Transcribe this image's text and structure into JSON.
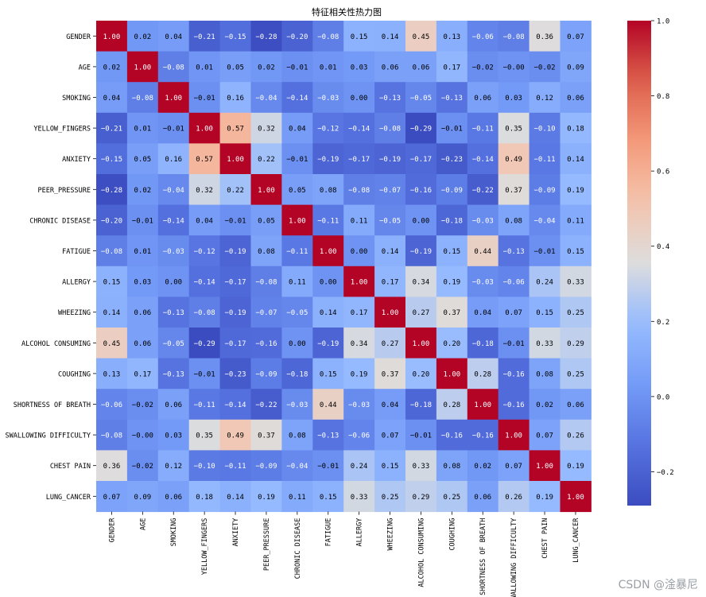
{
  "chart_data": {
    "type": "heatmap",
    "title": "特征相关性热力图",
    "labels": [
      "GENDER",
      "AGE",
      "SMOKING",
      "YELLOW_FINGERS",
      "ANXIETY",
      "PEER_PRESSURE",
      "CHRONIC DISEASE",
      "FATIGUE ",
      "ALLERGY ",
      "WHEEZING",
      "ALCOHOL CONSUMING",
      "COUGHING",
      "SHORTNESS OF BREATH",
      "SWALLOWING DIFFICULTY",
      "CHEST PAIN",
      "LUNG_CANCER"
    ],
    "matrix": [
      [
        1.0,
        0.02,
        0.04,
        -0.21,
        -0.15,
        -0.28,
        -0.2,
        -0.08,
        0.15,
        0.14,
        0.45,
        0.13,
        -0.06,
        -0.08,
        0.36,
        0.07
      ],
      [
        0.02,
        1.0,
        -0.08,
        0.01,
        0.05,
        0.02,
        -0.01,
        0.01,
        0.03,
        0.06,
        0.06,
        0.17,
        -0.02,
        -0.0,
        -0.02,
        0.09
      ],
      [
        0.04,
        -0.08,
        1.0,
        -0.01,
        0.16,
        -0.04,
        -0.14,
        -0.03,
        0.0,
        -0.13,
        -0.05,
        -0.13,
        0.06,
        0.03,
        0.12,
        0.06
      ],
      [
        -0.21,
        0.01,
        -0.01,
        1.0,
        0.57,
        0.32,
        0.04,
        -0.12,
        -0.14,
        -0.08,
        -0.29,
        -0.01,
        -0.11,
        0.35,
        -0.1,
        0.18
      ],
      [
        -0.15,
        0.05,
        0.16,
        0.57,
        1.0,
        0.22,
        -0.01,
        -0.19,
        -0.17,
        -0.19,
        -0.17,
        -0.23,
        -0.14,
        0.49,
        -0.11,
        0.14
      ],
      [
        -0.28,
        0.02,
        -0.04,
        0.32,
        0.22,
        1.0,
        0.05,
        0.08,
        -0.08,
        -0.07,
        -0.16,
        -0.09,
        -0.22,
        0.37,
        -0.09,
        0.19
      ],
      [
        -0.2,
        -0.01,
        -0.14,
        0.04,
        -0.01,
        0.05,
        1.0,
        -0.11,
        0.11,
        -0.05,
        0.0,
        -0.18,
        -0.03,
        0.08,
        -0.04,
        0.11
      ],
      [
        -0.08,
        0.01,
        -0.03,
        -0.12,
        -0.19,
        0.08,
        -0.11,
        1.0,
        0.0,
        0.14,
        -0.19,
        0.15,
        0.44,
        -0.13,
        -0.01,
        0.15
      ],
      [
        0.15,
        0.03,
        0.0,
        -0.14,
        -0.17,
        -0.08,
        0.11,
        0.0,
        1.0,
        0.17,
        0.34,
        0.19,
        -0.03,
        -0.06,
        0.24,
        0.33
      ],
      [
        0.14,
        0.06,
        -0.13,
        -0.08,
        -0.19,
        -0.07,
        -0.05,
        0.14,
        0.17,
        1.0,
        0.27,
        0.37,
        0.04,
        0.07,
        0.15,
        0.25
      ],
      [
        0.45,
        0.06,
        -0.05,
        -0.29,
        -0.17,
        -0.16,
        0.0,
        -0.19,
        0.34,
        0.27,
        1.0,
        0.2,
        -0.18,
        -0.01,
        0.33,
        0.29
      ],
      [
        0.13,
        0.17,
        -0.13,
        -0.01,
        -0.23,
        -0.09,
        -0.18,
        0.15,
        0.19,
        0.37,
        0.2,
        1.0,
        0.28,
        -0.16,
        0.08,
        0.25
      ],
      [
        -0.06,
        -0.02,
        0.06,
        -0.11,
        -0.14,
        -0.22,
        -0.03,
        0.44,
        -0.03,
        0.04,
        -0.18,
        0.28,
        1.0,
        -0.16,
        0.02,
        0.06
      ],
      [
        -0.08,
        -0.0,
        0.03,
        0.35,
        0.49,
        0.37,
        0.08,
        -0.13,
        -0.06,
        0.07,
        -0.01,
        -0.16,
        -0.16,
        1.0,
        0.07,
        0.26
      ],
      [
        0.36,
        -0.02,
        0.12,
        -0.1,
        -0.11,
        -0.09,
        -0.04,
        -0.01,
        0.24,
        0.15,
        0.33,
        0.08,
        0.02,
        0.07,
        1.0,
        0.19
      ],
      [
        0.07,
        0.09,
        0.06,
        0.18,
        0.14,
        0.19,
        0.11,
        0.15,
        0.33,
        0.25,
        0.29,
        0.25,
        0.06,
        0.26,
        0.19,
        1.0
      ]
    ],
    "colormap": "coolwarm",
    "vmin": -0.29,
    "vmax": 1.0,
    "colorbar_ticks": [
      "-0.2",
      "0.0",
      "0.2",
      "0.4",
      "0.6",
      "0.8",
      "1.0"
    ],
    "colorbar_tick_values": [
      -0.2,
      0.0,
      0.2,
      0.4,
      0.6,
      0.8,
      1.0
    ],
    "legend_position": "right"
  },
  "watermark": "CSDN @淦暴尼"
}
